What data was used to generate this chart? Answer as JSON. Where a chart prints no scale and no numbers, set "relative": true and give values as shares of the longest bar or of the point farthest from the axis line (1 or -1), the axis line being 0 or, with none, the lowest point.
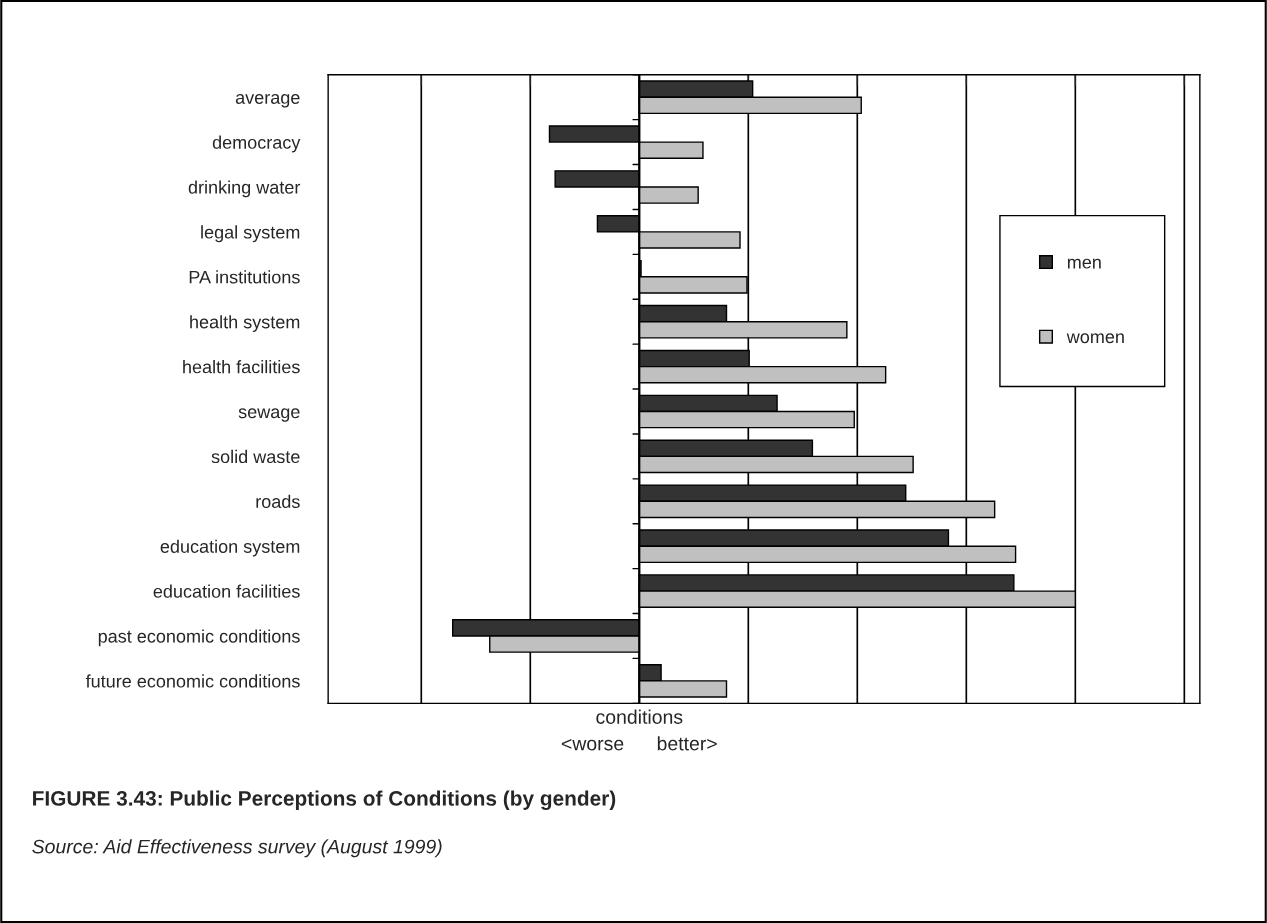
{
  "chart_data": {
    "type": "bar",
    "orientation": "horizontal",
    "relative": true,
    "title": "FIGURE 3.43: Public Perceptions of Conditions (by gender)",
    "xlabel": "conditions\n<worse      better>",
    "annotations": [
      "Source: Aid Effectiveness survey (August 1999)"
    ],
    "categories": [
      "average",
      "democracy",
      "drinking water",
      "legal system",
      "PA institutions",
      "health system",
      "health facilities",
      "sewage",
      "solid waste",
      "roads",
      "education system",
      "education facilities",
      "past economic conditions",
      "future economic conditions"
    ],
    "series": [
      {
        "name": "men",
        "color": "#333333",
        "values": [
          0.26,
          -0.206,
          -0.193,
          -0.096,
          0.004,
          0.2,
          0.252,
          0.316,
          0.397,
          0.611,
          0.709,
          0.859,
          -0.428,
          0.05
        ]
      },
      {
        "name": "women",
        "color": "#c0c0c0",
        "values": [
          0.509,
          0.146,
          0.135,
          0.231,
          0.247,
          0.476,
          0.565,
          0.493,
          0.628,
          0.815,
          0.863,
          1.0,
          -0.343,
          0.2
        ]
      }
    ],
    "grid": "x",
    "legend": "right"
  }
}
